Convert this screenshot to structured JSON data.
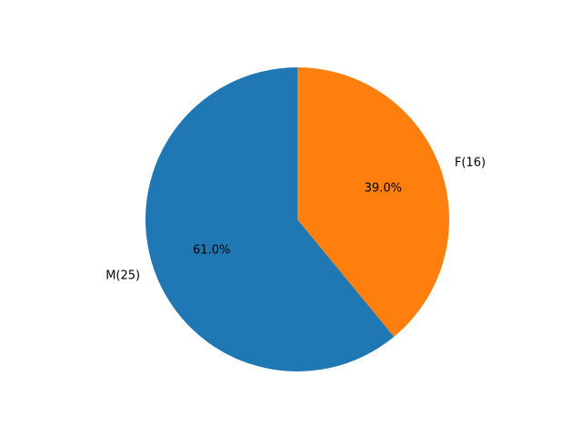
{
  "chart_data": {
    "type": "pie",
    "title": "",
    "slices": [
      {
        "label": "F(16)",
        "value": 16,
        "percent_label": "39.0%",
        "color": "#ff7f0e"
      },
      {
        "label": "M(25)",
        "value": 25,
        "percent_label": "61.0%",
        "color": "#1f77b4"
      }
    ],
    "start_angle_deg": 90,
    "direction": "clockwise",
    "legend": "none"
  }
}
